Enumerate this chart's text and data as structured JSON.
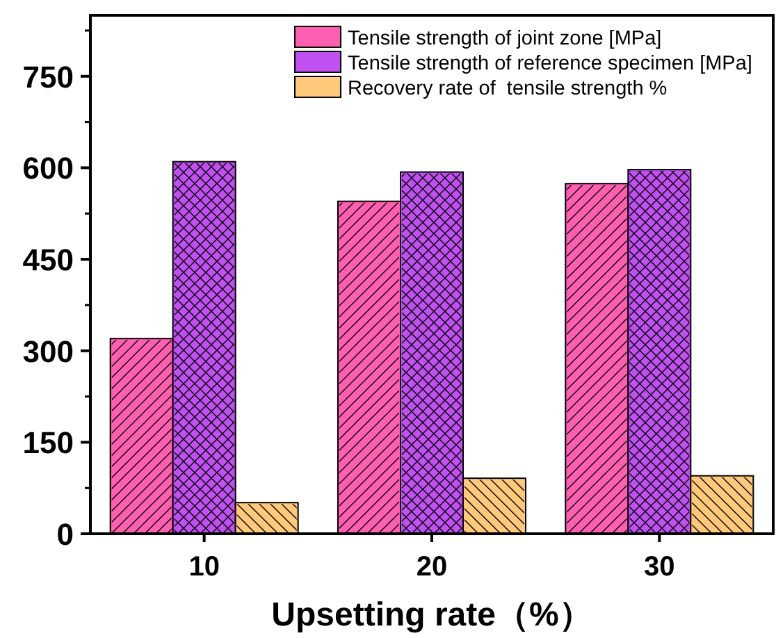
{
  "chart_data": {
    "type": "bar",
    "xlabel": "Upsetting rate（%）",
    "categories": [
      "10",
      "20",
      "30"
    ],
    "series": [
      {
        "name": "Tensile strength of joint zone [MPa]",
        "color": "#ff5fb0",
        "values": [
          320,
          545,
          574
        ]
      },
      {
        "name": "Tensile strength of reference specimen [MPa]",
        "color": "#c050f0",
        "values": [
          610,
          593,
          597
        ]
      },
      {
        "name": "Recovery rate of  tensile strength %",
        "color": "#ffc87a",
        "values": [
          51,
          91,
          95
        ]
      }
    ],
    "ylim": [
      0,
      850
    ],
    "yticks": [
      0,
      150,
      300,
      450,
      600,
      750
    ],
    "legend": "top right",
    "grid": false
  }
}
